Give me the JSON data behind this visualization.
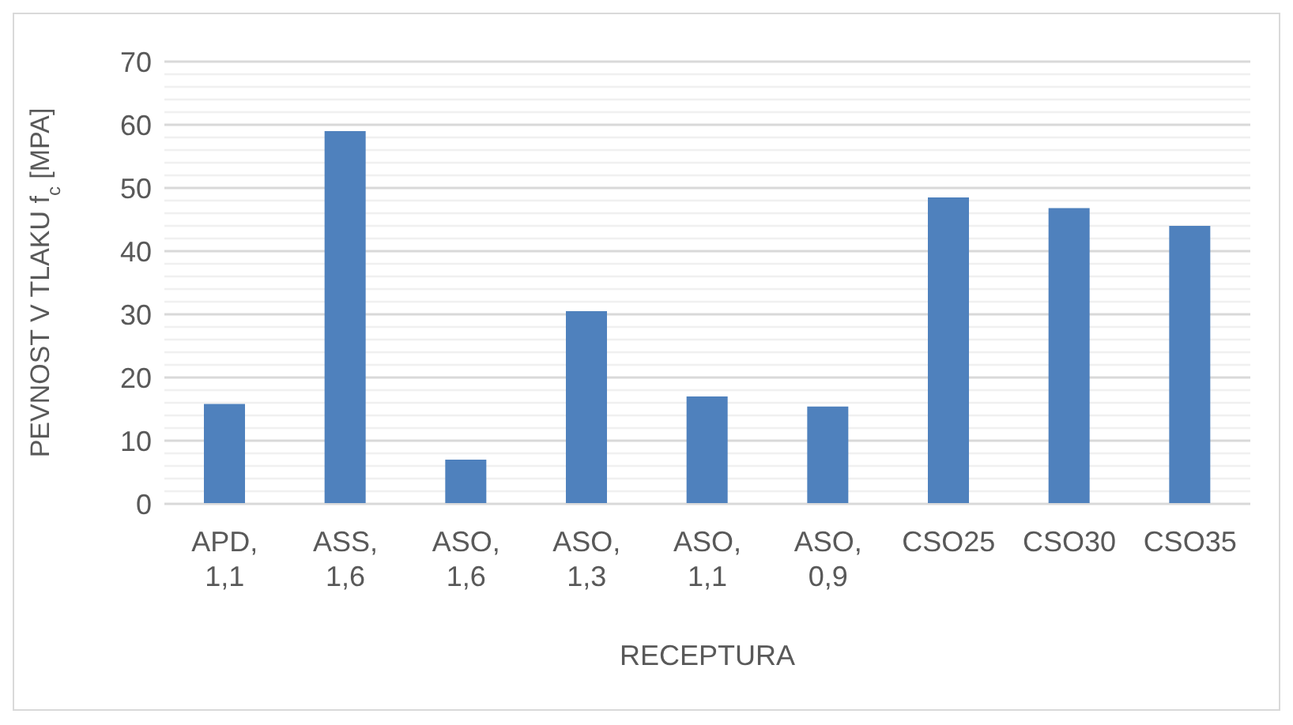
{
  "chart_data": {
    "type": "bar",
    "xlabel": "RECEPTURA",
    "ylabel": "PEVNOST V TLAKU f$_{c}$ [MPA]",
    "categories": [
      "APD, 1,1",
      "ASS, 1,6",
      "ASO, 1,6",
      "ASO, 1,3",
      "ASO, 1,1",
      "ASO, 0,9",
      "CSO25",
      "CSO30",
      "CSO35"
    ],
    "values": [
      15.8,
      59.0,
      7.0,
      30.5,
      17.0,
      15.4,
      48.5,
      46.8,
      44.0
    ],
    "color": "#4f81bd",
    "ylim": [
      0,
      70
    ],
    "yticks": [
      0,
      {
        "value": 2,
        "label": null
      },
      {
        "value": 4,
        "label": null
      },
      {
        "value": 6,
        "label": null
      },
      {
        "value": 8,
        "label": null
      },
      10,
      {
        "value": 12,
        "label": null
      },
      {
        "value": 14,
        "label": null
      },
      {
        "value": 16,
        "label": null
      },
      {
        "value": 18,
        "label": null
      },
      20,
      {
        "value": 22,
        "label": null
      },
      {
        "value": 24,
        "label": null
      },
      {
        "value": 26,
        "label": null
      },
      {
        "value": 28,
        "label": null
      },
      30,
      {
        "value": 32,
        "label": null
      },
      {
        "value": 34,
        "label": null
      },
      {
        "value": 36,
        "label": null
      },
      {
        "value": 38,
        "label": null
      },
      40,
      {
        "value": 42,
        "label": null
      },
      {
        "value": 44,
        "label": null
      },
      {
        "value": 46,
        "label": null
      },
      {
        "value": 48,
        "label": null
      },
      50,
      {
        "value": 52,
        "label": null
      },
      {
        "value": 54,
        "label": null
      },
      {
        "value": 56,
        "label": null
      },
      {
        "value": 58,
        "label": null
      },
      60,
      {
        "value": 62,
        "label": null
      },
      {
        "value": 64,
        "label": null
      },
      {
        "value": 66,
        "label": null
      },
      {
        "value": 68,
        "label": null
      },
      70
    ],
    "grid": true
  }
}
